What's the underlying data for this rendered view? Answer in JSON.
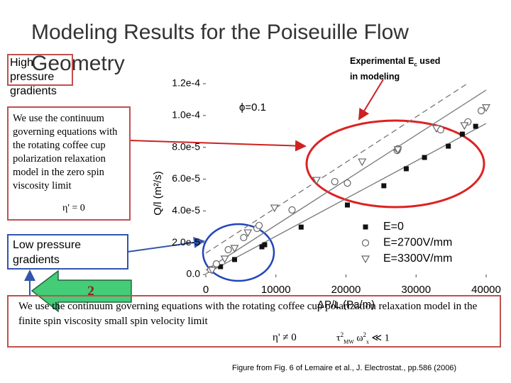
{
  "slide": {
    "title": "Modeling Results for the Poiseuille Flow Geometry",
    "high_box": "High pressure gradients",
    "experimental": {
      "before": "Experimental E",
      "sub": "c",
      "after": " used",
      "line2": "in modeling"
    },
    "zero_spin_box": {
      "text": "We use the continuum governing equations with the rotating coffee cup polarization relaxation model in the zero spin viscosity limit",
      "formula": "η' = 0"
    },
    "low_box": "Low pressure gradients",
    "arrow_label": "2",
    "bottom_box": {
      "text": "We use the continuum governing equations with the rotating coffee cup polarization relaxation model in the finite spin viscosity small spin velocity limit",
      "formula1": "η' ≠ 0",
      "formula2": {
        "tau": "τ",
        "tau_sup": "2",
        "tau_sub": "MW",
        "omega": "ω",
        "omega_sup": "2",
        "omega_sub": "x",
        "rel": "≪ 1"
      }
    },
    "citation": "Figure from Fig. 6 of Lemaire et al., J. Electrostat., pp.586 (2006)"
  },
  "chart_data": {
    "type": "scatter",
    "xlabel": "ΔP/L (Pa/m)",
    "ylabel": "Q/l (m²/s)",
    "annotation": "ϕ=0.1",
    "xlim": [
      0,
      40000
    ],
    "xticks": [
      0,
      10000,
      20000,
      30000,
      40000
    ],
    "ylim": [
      0,
      0.00012
    ],
    "yticks": [
      {
        "value": 0,
        "label": "0.0"
      },
      {
        "value": 2e-05,
        "label": "2.0e-5"
      },
      {
        "value": 4e-05,
        "label": "4.0e-5"
      },
      {
        "value": 6e-05,
        "label": "6.0e-5"
      },
      {
        "value": 8e-05,
        "label": "8.0e-5"
      },
      {
        "value": 0.0001,
        "label": "1.0e-4"
      },
      {
        "value": 0.00012,
        "label": "1.2e-4"
      }
    ],
    "legend": "lower right",
    "series": [
      {
        "name": "E=0",
        "color": "#111111",
        "marker": "square",
        "x": [
          2100,
          4100,
          8000,
          8400,
          13600,
          20200,
          25400,
          28600,
          31200,
          34600,
          36600,
          38500
        ],
        "values": [
          4.9e-06,
          9.4e-06,
          1.74e-05,
          1.87e-05,
          2.98e-05,
          4.37e-05,
          5.58e-05,
          6.65e-05,
          7.36e-05,
          8.07e-05,
          8.83e-05,
          9.32e-05
        ]
      },
      {
        "name": "E=2700V/mm",
        "color": "#666666",
        "marker": "circle",
        "x": [
          700,
          1500,
          3200,
          5400,
          7300,
          7600,
          12300,
          18400,
          20200,
          27300,
          27400,
          33500,
          37400,
          39300
        ],
        "values": [
          3.1e-06,
          6.7e-06,
          1.56e-05,
          2.32e-05,
          2.9e-05,
          3.08e-05,
          4.06e-05,
          5.84e-05,
          5.75e-05,
          7.8e-05,
          7.9e-05,
          9.1e-05,
          9.6e-05,
          0.000103
        ]
      },
      {
        "name": "E=3300V/mm",
        "color": "#666666",
        "marker": "triangle-down",
        "x": [
          900,
          2700,
          4100,
          6000,
          9800,
          15800,
          22300,
          27400,
          32900,
          36900,
          40000
        ],
        "values": [
          2.7e-06,
          9.8e-06,
          1.65e-05,
          2.63e-05,
          4.19e-05,
          5.93e-05,
          7.09e-05,
          7.85e-05,
          9.19e-05,
          9.37e-05,
          0.000105
        ]
      }
    ],
    "fit_lines": [
      {
        "color": "#777777",
        "dashed": false,
        "x": [
          0,
          40000
        ],
        "values": [
          4e-07,
          9.5e-05
        ]
      },
      {
        "color": "#777777",
        "dashed": false,
        "x": [
          0,
          40000
        ],
        "values": [
          2.7e-06,
          0.000116
        ]
      },
      {
        "color": "#777777",
        "dashed": true,
        "x": [
          0,
          37300
        ],
        "values": [
          1.34e-05,
          0.00012
        ]
      }
    ]
  }
}
